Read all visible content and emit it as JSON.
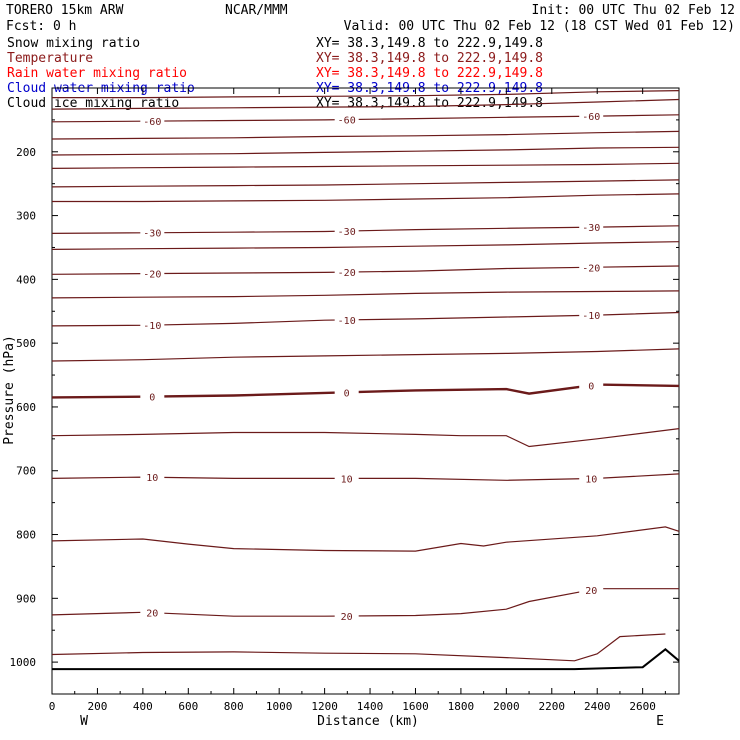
{
  "header": {
    "model": "TORERO  15km ARW",
    "center": "NCAR/MMM",
    "init": "Init: 00 UTC Thu 02 Feb 12",
    "fcst": "Fcst:    0 h",
    "valid": "Valid: 00 UTC Thu 02 Feb 12 (18 CST Wed 01 Feb 12)"
  },
  "legend": [
    {
      "field": "Snow mixing ratio",
      "xy": "XY=  38.3,149.8 to 222.9,149.8",
      "color": "#000000"
    },
    {
      "field": "Temperature",
      "xy": "XY=  38.3,149.8 to 222.9,149.8",
      "color": "#8b1a1a"
    },
    {
      "field": "Rain water mixing ratio",
      "xy": "XY=  38.3,149.8 to 222.9,149.8",
      "color": "#ff0000"
    },
    {
      "field": "Cloud water mixing ratio",
      "xy": "XY=  38.3,149.8 to 222.9,149.8",
      "color": "#0000cc"
    },
    {
      "field": "Cloud ice mixing ratio",
      "xy": "XY=  38.3,149.8 to 222.9,149.8",
      "color": "#000000"
    }
  ],
  "colors": {
    "temperature": "#6b1a1a",
    "terrain": "#000000",
    "axis": "#000000"
  },
  "chart_data": {
    "type": "line",
    "title": "",
    "xlabel": "Distance (km)",
    "ylabel": "Pressure (hPa)",
    "xlim": [
      0,
      2760
    ],
    "ylim": [
      1050,
      100
    ],
    "x_ticks": [
      0,
      200,
      400,
      600,
      800,
      1000,
      1200,
      1400,
      1600,
      1800,
      2000,
      2200,
      2400,
      2600
    ],
    "y_ticks": [
      200,
      300,
      400,
      500,
      600,
      700,
      800,
      900,
      1000
    ],
    "x_end_labels": {
      "left": "W",
      "right": "E"
    },
    "series": [
      {
        "x": [
          0,
          400,
          800,
          1200,
          1600,
          2000,
          2400,
          2760
        ],
        "y": [
          115,
          115,
          114,
          113,
          112,
          110,
          106,
          104
        ]
      },
      {
        "x": [
          0,
          400,
          800,
          1200,
          1600,
          2000,
          2400,
          2760
        ],
        "y": [
          133,
          132,
          131,
          130,
          129,
          126,
          122,
          118
        ]
      },
      {
        "x": [
          0,
          400,
          800,
          1200,
          1600,
          2000,
          2400,
          2760
        ],
        "y": [
          153,
          152,
          151,
          150,
          148,
          146,
          144,
          142
        ],
        "label": "-60"
      },
      {
        "x": [
          0,
          400,
          800,
          1200,
          1600,
          2000,
          2400,
          2760
        ],
        "y": [
          180,
          179,
          178,
          176,
          175,
          173,
          170,
          168
        ]
      },
      {
        "x": [
          0,
          400,
          800,
          1200,
          1600,
          2000,
          2400,
          2760
        ],
        "y": [
          205,
          204,
          203,
          201,
          199,
          197,
          194,
          193
        ]
      },
      {
        "x": [
          0,
          400,
          800,
          1200,
          1600,
          2000,
          2400,
          2760
        ],
        "y": [
          226,
          225,
          224,
          223,
          222,
          221,
          220,
          218
        ]
      },
      {
        "x": [
          0,
          400,
          800,
          1200,
          1600,
          2000,
          2400,
          2760
        ],
        "y": [
          255,
          254,
          253,
          252,
          250,
          248,
          246,
          244
        ]
      },
      {
        "x": [
          0,
          400,
          800,
          1200,
          1600,
          2000,
          2400,
          2760
        ],
        "y": [
          278,
          278,
          277,
          276,
          274,
          272,
          268,
          266
        ]
      },
      {
        "x": [
          0,
          400,
          800,
          1200,
          1600,
          2000,
          2400,
          2760
        ],
        "y": [
          328,
          327,
          326,
          325,
          322,
          320,
          318,
          316
        ],
        "label": "-30"
      },
      {
        "x": [
          0,
          400,
          800,
          1200,
          1600,
          2000,
          2400,
          2760
        ],
        "y": [
          353,
          352,
          351,
          350,
          348,
          346,
          343,
          341
        ]
      },
      {
        "x": [
          0,
          400,
          800,
          1200,
          1600,
          2000,
          2400,
          2760
        ],
        "y": [
          392,
          391,
          390,
          389,
          387,
          383,
          381,
          379
        ],
        "label": "-20"
      },
      {
        "x": [
          0,
          400,
          800,
          1200,
          1600,
          2000,
          2400,
          2760
        ],
        "y": [
          429,
          428,
          427,
          425,
          422,
          420,
          419,
          418
        ]
      },
      {
        "x": [
          0,
          400,
          800,
          1200,
          1600,
          2000,
          2400,
          2760
        ],
        "y": [
          473,
          472,
          469,
          464,
          462,
          459,
          456,
          452
        ],
        "label": "-10"
      },
      {
        "x": [
          0,
          400,
          800,
          1200,
          1600,
          2000,
          2400,
          2760
        ],
        "y": [
          528,
          526,
          522,
          520,
          518,
          516,
          513,
          509
        ]
      },
      {
        "x": [
          0,
          400,
          800,
          1200,
          1600,
          2000,
          2100,
          2400,
          2760
        ],
        "y": [
          585,
          584,
          582,
          578,
          574,
          572,
          579,
          565,
          567
        ],
        "label": "0",
        "bold": true
      },
      {
        "x": [
          0,
          400,
          800,
          1200,
          1600,
          1800,
          2000,
          2100,
          2400,
          2760
        ],
        "y": [
          645,
          643,
          640,
          640,
          643,
          645,
          645,
          662,
          650,
          634
        ]
      },
      {
        "x": [
          0,
          400,
          800,
          1200,
          1600,
          2000,
          2400,
          2760
        ],
        "y": [
          712,
          710,
          712,
          712,
          712,
          715,
          712,
          705
        ],
        "label": "10"
      },
      {
        "x": [
          0,
          400,
          600,
          800,
          1200,
          1600,
          1800,
          1900,
          2000,
          2400,
          2700,
          2760
        ],
        "y": [
          810,
          807,
          815,
          822,
          825,
          826,
          814,
          818,
          812,
          802,
          788,
          795
        ]
      },
      {
        "x": [
          0,
          400,
          800,
          1200,
          1600,
          1800,
          2000,
          2100,
          2400,
          2760
        ],
        "y": [
          926,
          922,
          928,
          928,
          927,
          924,
          917,
          905,
          885,
          885
        ],
        "label": "20"
      },
      {
        "x": [
          0,
          400,
          800,
          1200,
          1600,
          2000,
          2300,
          2400,
          2500,
          2700
        ],
        "y": [
          988,
          985,
          984,
          986,
          987,
          993,
          998,
          987,
          960,
          956
        ]
      }
    ],
    "terrain": {
      "x": [
        0,
        2300,
        2600,
        2700,
        2760
      ],
      "y": [
        1011,
        1011,
        1008,
        980,
        998
      ]
    }
  }
}
